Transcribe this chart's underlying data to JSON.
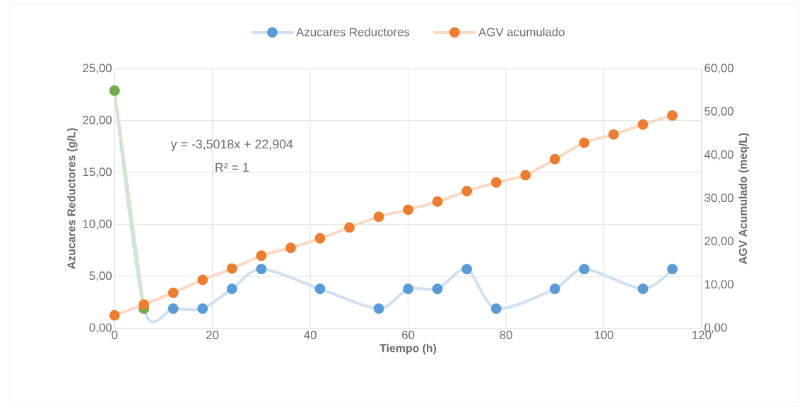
{
  "chart_data": {
    "type": "line",
    "xlabel": "Tiempo (h)",
    "ylabel": "Azucares  Reductores (g/L)",
    "y2label": "AGV Acumulado (meq/L)",
    "x": [
      0,
      6,
      12,
      18,
      24,
      30,
      36,
      42,
      48,
      54,
      60,
      66,
      72,
      78,
      84,
      90,
      96,
      102,
      108,
      114
    ],
    "series": [
      {
        "name": "Azucares Reductores",
        "color": "#5b9bd5",
        "x": [
          0,
          6,
          12,
          18,
          24,
          30,
          42,
          54,
          60,
          66,
          72,
          78,
          90,
          96,
          108,
          114
        ],
        "values": [
          22.9,
          1.9,
          1.9,
          1.9,
          3.8,
          5.7,
          3.8,
          1.9,
          3.8,
          3.8,
          5.7,
          1.9,
          3.8,
          5.7,
          3.8,
          5.7
        ]
      },
      {
        "name": "AGV acumulado",
        "color": "#ed7d31",
        "axis": "y2",
        "values": [
          3.0,
          5.5,
          8.2,
          11.2,
          13.8,
          16.8,
          18.6,
          20.8,
          23.3,
          25.8,
          27.4,
          29.3,
          31.7,
          33.7,
          35.4,
          39.1,
          42.9,
          44.8,
          47.1,
          49.2
        ]
      },
      {
        "color": "#70ad47",
        "x": [
          0,
          6
        ],
        "values": [
          22.9,
          1.9
        ]
      }
    ],
    "annotations": [
      "y = -3,5018x + 22,904",
      "R² = 1"
    ],
    "xlim": [
      0,
      120
    ],
    "xticks": [
      0,
      20,
      40,
      60,
      80,
      100,
      120
    ],
    "ylim": [
      0,
      25
    ],
    "yticks": [
      {
        "value": 0,
        "label": "0,00"
      },
      {
        "value": 5,
        "label": "5,00"
      },
      {
        "value": 10,
        "label": "10,00"
      },
      {
        "value": 15,
        "label": "15,00"
      },
      {
        "value": 20,
        "label": "20,00"
      },
      {
        "value": 25,
        "label": "25,00"
      }
    ],
    "y2lim": [
      0,
      60
    ],
    "y2ticks": [
      {
        "value": 0,
        "label": "0,00"
      },
      {
        "value": 10,
        "label": "10,00"
      },
      {
        "value": 20,
        "label": "20,00"
      },
      {
        "value": 30,
        "label": "30,00"
      },
      {
        "value": 40,
        "label": "40,00"
      },
      {
        "value": 50,
        "label": "50,00"
      },
      {
        "value": 60,
        "label": "60,00"
      }
    ],
    "grid": true,
    "legend": "top",
    "marker": "circle",
    "line_style": "solid"
  }
}
